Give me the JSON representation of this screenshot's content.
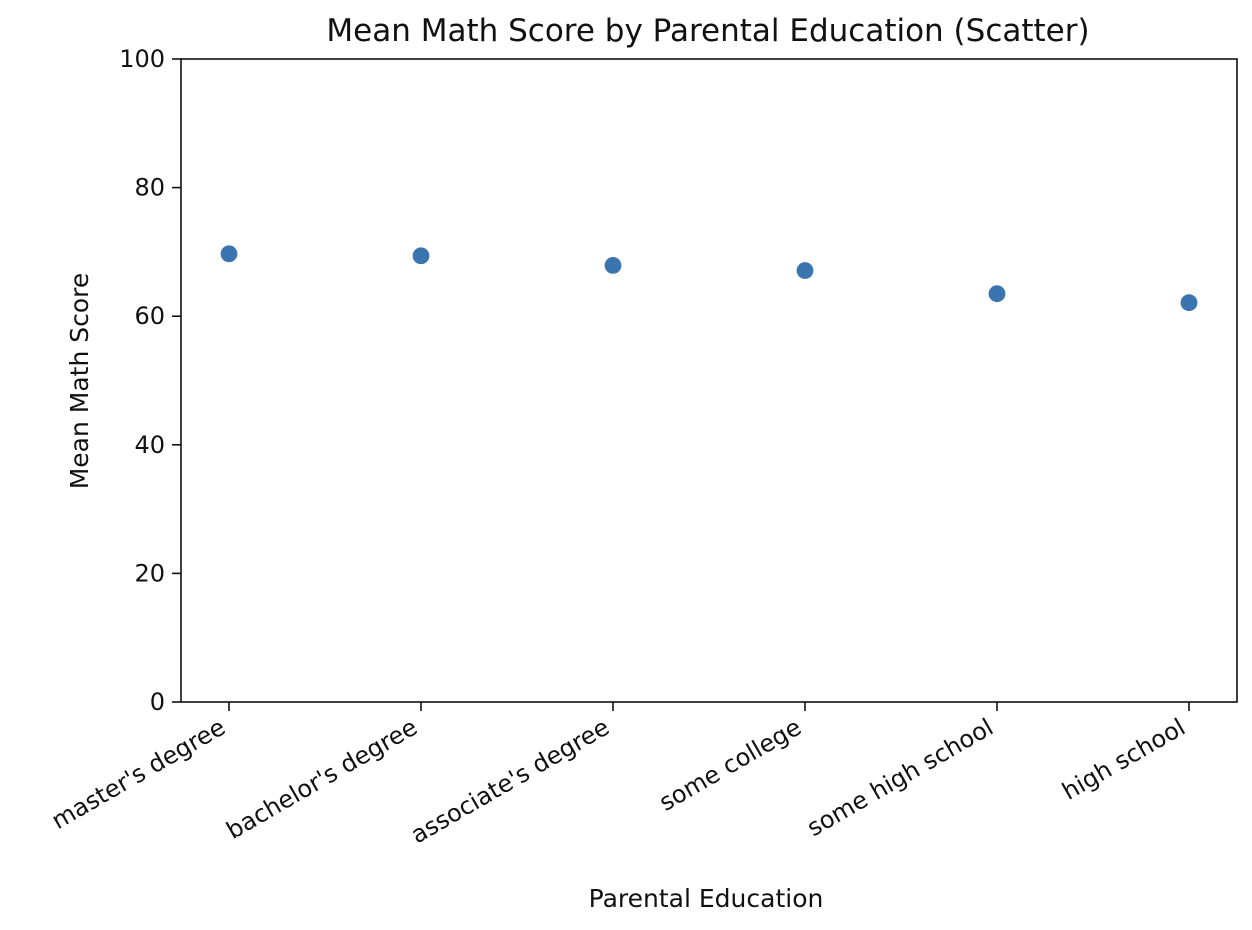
{
  "chart_data": {
    "type": "scatter",
    "title": "Mean Math Score by Parental Education (Scatter)",
    "xlabel": "Parental Education",
    "ylabel": "Mean Math Score",
    "categories": [
      "master's degree",
      "bachelor's degree",
      "associate's degree",
      "some college",
      "some high school",
      "high school"
    ],
    "values": [
      69.7,
      69.4,
      67.9,
      67.1,
      63.5,
      62.1
    ],
    "ylim": [
      0,
      100
    ],
    "yticks": [
      0,
      20,
      40,
      60,
      80,
      100
    ],
    "grid": false,
    "legend": "none",
    "point_color": "#3a75b0"
  }
}
